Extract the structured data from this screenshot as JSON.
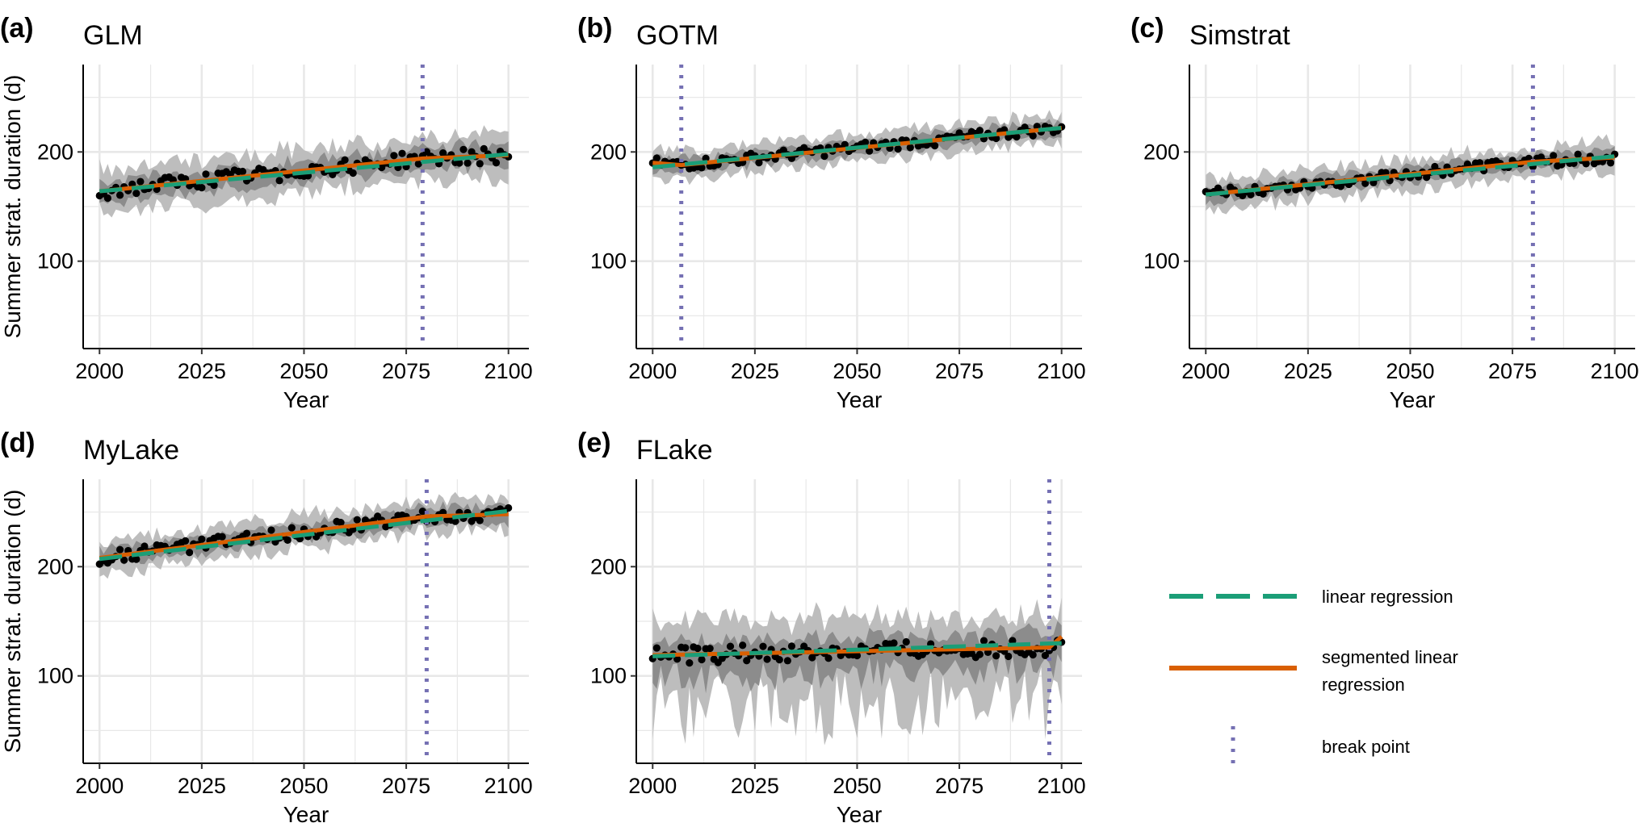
{
  "figure": {
    "legend": {
      "placement": "bottom-right",
      "items": [
        {
          "key": "linear",
          "lines": [
            "linear regression"
          ],
          "color": "#1b9e77",
          "style": "dashed"
        },
        {
          "key": "segmented",
          "lines": [
            "segmented linear",
            "regression"
          ],
          "color": "#d95f02",
          "style": "solid"
        },
        {
          "key": "break",
          "lines": [
            "break point"
          ],
          "color": "#7570b3",
          "style": "dotted"
        }
      ]
    },
    "colors": {
      "linear_regression": "#1b9e77",
      "segmented_regression": "#d95f02",
      "break_point": "#7570b3",
      "observations": "#000000",
      "ensemble_range_outer": "#bdbdbd",
      "ensemble_range_inner": "#8c8c8c",
      "grid": "#e8e8e8"
    }
  },
  "chart_data": [
    {
      "id": "a",
      "letter": "(a)",
      "title": "GLM",
      "type": "scatter",
      "xlabel": "Year",
      "ylabel": "Summer strat. duration (d)",
      "xlim": [
        1996,
        2105
      ],
      "ylim": [
        20,
        280
      ],
      "xticks": [
        2000,
        2025,
        2050,
        2075,
        2100
      ],
      "yticks": [
        100,
        200
      ],
      "grid": true,
      "linear": {
        "x": [
          2000,
          2100
        ],
        "y": [
          164,
          198
        ]
      },
      "segmented": {
        "x": [
          2000,
          2079,
          2100
        ],
        "y": [
          164,
          194,
          197
        ]
      },
      "break_point": 2079,
      "band_outer_halfwidth": 20,
      "band_inner_halfwidth": 10,
      "point_noise": 7
    },
    {
      "id": "b",
      "letter": "(b)",
      "title": "GOTM",
      "type": "scatter",
      "xlabel": "Year",
      "ylabel": "",
      "xlim": [
        1996,
        2105
      ],
      "ylim": [
        20,
        280
      ],
      "xticks": [
        2000,
        2025,
        2050,
        2075,
        2100
      ],
      "yticks": [
        100,
        200
      ],
      "grid": true,
      "linear": {
        "x": [
          2000,
          2100
        ],
        "y": [
          186,
          222
        ]
      },
      "segmented": {
        "x": [
          2000,
          2007,
          2100
        ],
        "y": [
          190,
          188,
          222
        ]
      },
      "break_point": 2007,
      "band_outer_halfwidth": 13,
      "band_inner_halfwidth": 7,
      "point_noise": 5
    },
    {
      "id": "c",
      "letter": "(c)",
      "title": "Simstrat",
      "type": "scatter",
      "xlabel": "Year",
      "ylabel": "",
      "xlim": [
        1996,
        2105
      ],
      "ylim": [
        20,
        280
      ],
      "xticks": [
        2000,
        2025,
        2050,
        2075,
        2100
      ],
      "yticks": [
        100,
        200
      ],
      "grid": true,
      "linear": {
        "x": [
          2000,
          2100
        ],
        "y": [
          161,
          196
        ]
      },
      "segmented": {
        "x": [
          2000,
          2080,
          2100
        ],
        "y": [
          161,
          191,
          195
        ]
      },
      "break_point": 2080,
      "band_outer_halfwidth": 14,
      "band_inner_halfwidth": 7,
      "point_noise": 5
    },
    {
      "id": "d",
      "letter": "(d)",
      "title": "MyLake",
      "type": "scatter",
      "xlabel": "Year",
      "ylabel": "Summer strat. duration (d)",
      "xlim": [
        1996,
        2105
      ],
      "ylim": [
        20,
        280
      ],
      "xticks": [
        2000,
        2025,
        2050,
        2075,
        2100
      ],
      "yticks": [
        100,
        200
      ],
      "grid": true,
      "linear": {
        "x": [
          2000,
          2100
        ],
        "y": [
          207,
          251
        ]
      },
      "segmented": {
        "x": [
          2000,
          2080,
          2100
        ],
        "y": [
          208,
          246,
          248
        ]
      },
      "break_point": 2080,
      "band_outer_halfwidth": 15,
      "band_inner_halfwidth": 8,
      "point_noise": 6
    },
    {
      "id": "e",
      "letter": "(e)",
      "title": "FLake",
      "type": "scatter",
      "xlabel": "Year",
      "ylabel": "",
      "xlim": [
        1996,
        2105
      ],
      "ylim": [
        20,
        280
      ],
      "xticks": [
        2000,
        2025,
        2050,
        2075,
        2100
      ],
      "yticks": [
        100,
        200
      ],
      "grid": true,
      "linear": {
        "x": [
          2000,
          2100
        ],
        "y": [
          118,
          130
        ]
      },
      "segmented": {
        "x": [
          2000,
          2097,
          2100
        ],
        "y": [
          119,
          126,
          136
        ]
      },
      "break_point": 2097,
      "band_outer_halfwidth": 30,
      "band_inner_halfwidth": 14,
      "point_noise": 8
    }
  ]
}
